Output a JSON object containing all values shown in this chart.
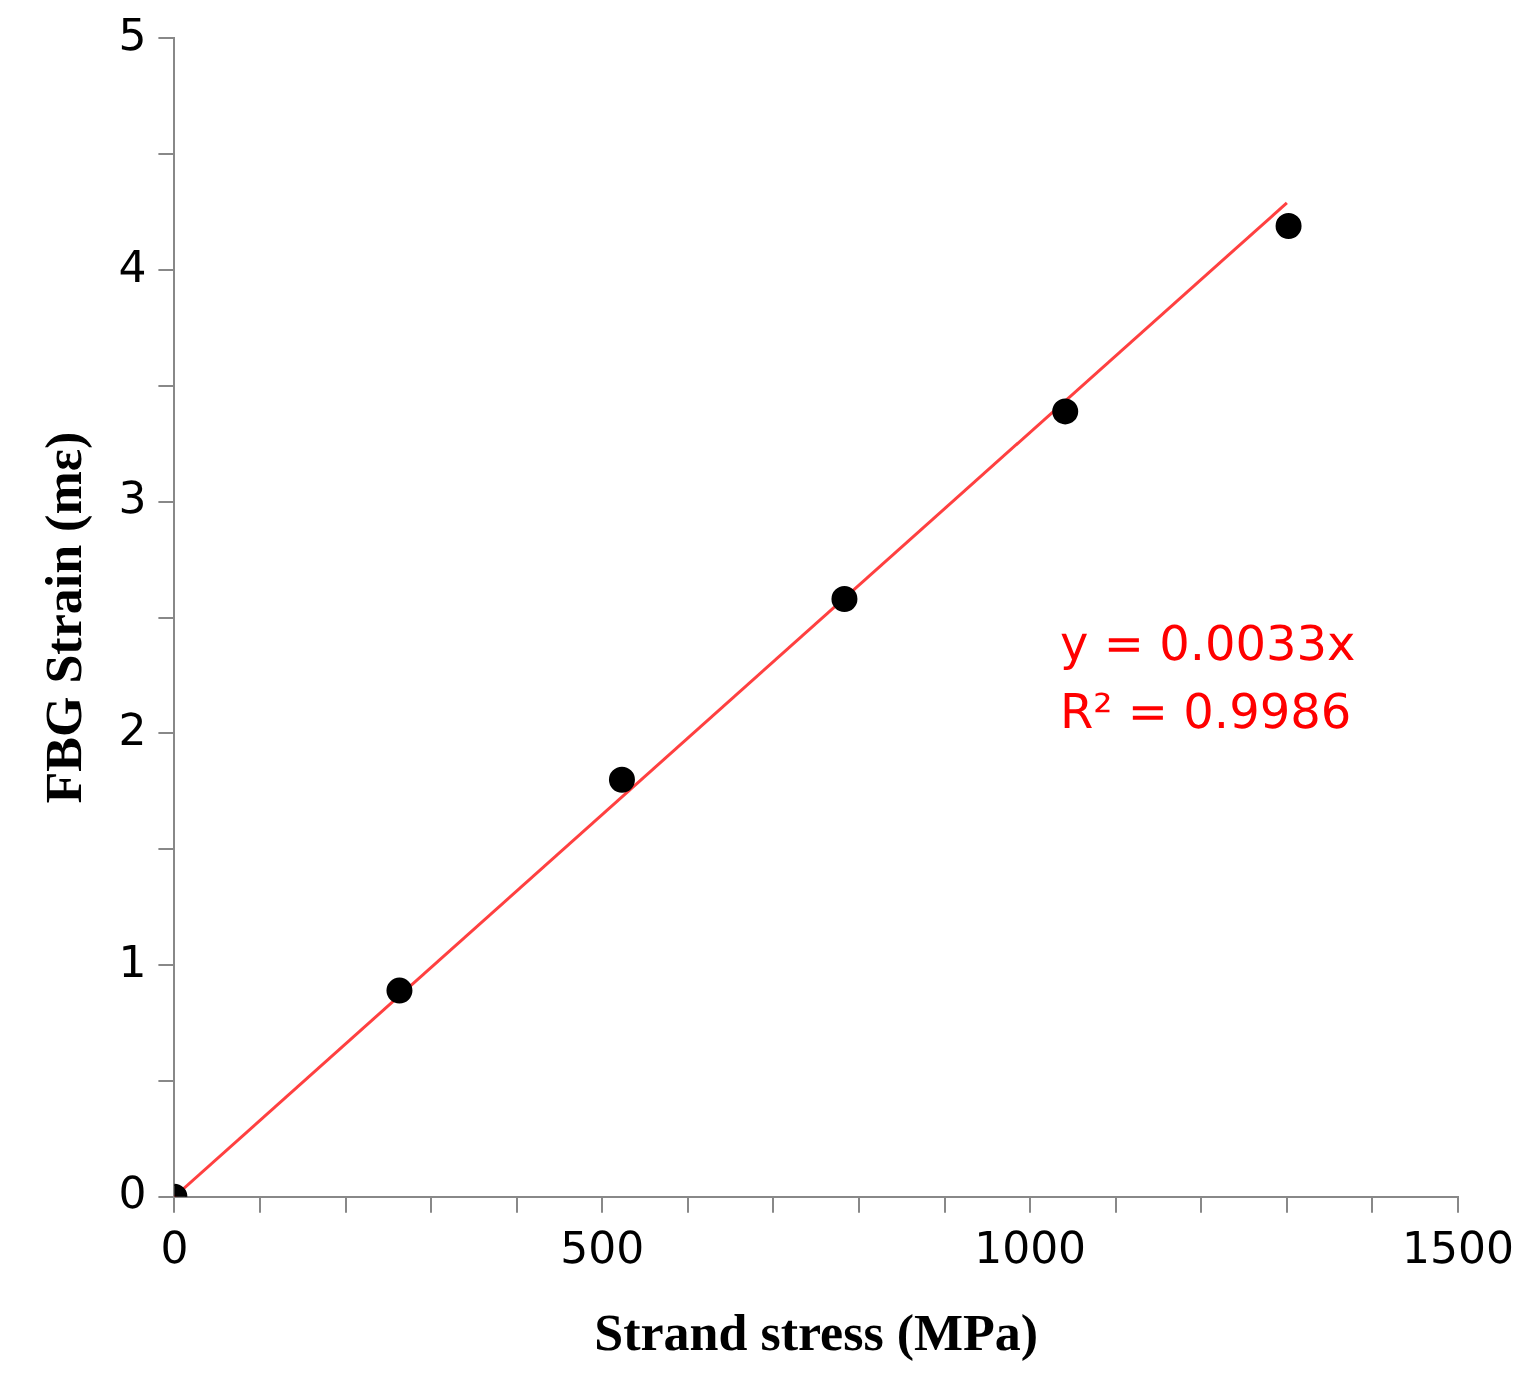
{
  "chart_data": {
    "type": "scatter",
    "xlabel": "Strand stress (MPa)",
    "ylabel": "FBG Strain (mε)",
    "x": [
      0,
      263,
      523,
      783,
      1041,
      1302
    ],
    "series": [
      {
        "color": "#000000",
        "values": [
          0,
          0.89,
          1.8,
          2.58,
          3.39,
          4.19
        ]
      },
      {
        "type": "line",
        "color": "#ff4040",
        "x": [
          0,
          1300
        ],
        "values": [
          0,
          4.29
        ],
        "marker": "none"
      }
    ],
    "marker": "circle",
    "grid": false,
    "legend": false,
    "xlim": [
      0,
      1500
    ],
    "ylim": [
      0,
      5
    ],
    "xticks": [
      0,
      {
        "value": 100,
        "label": null
      },
      {
        "value": 200,
        "label": null
      },
      {
        "value": 300,
        "label": null
      },
      {
        "value": 400,
        "label": null
      },
      500,
      {
        "value": 600,
        "label": null
      },
      {
        "value": 700,
        "label": null
      },
      {
        "value": 800,
        "label": null
      },
      {
        "value": 900,
        "label": null
      },
      1000,
      {
        "value": 1100,
        "label": null
      },
      {
        "value": 1200,
        "label": null
      },
      {
        "value": 1300,
        "label": null
      },
      {
        "value": 1400,
        "label": null
      },
      1500
    ],
    "yticks": [
      0,
      {
        "value": 0.5,
        "label": null
      },
      1,
      {
        "value": 1.5,
        "label": null
      },
      2,
      {
        "value": 2.5,
        "label": null
      },
      3,
      {
        "value": 3.5,
        "label": null
      },
      4,
      {
        "value": 4.5,
        "label": null
      },
      5
    ],
    "annotations": [
      "y = 0.0033x",
      "R² = 0.9986"
    ]
  }
}
